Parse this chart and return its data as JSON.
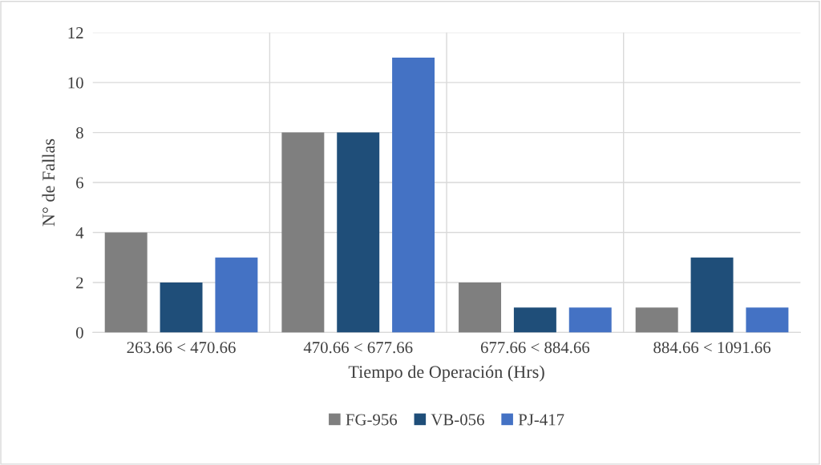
{
  "chart_data": {
    "type": "bar",
    "xlabel": "Tiempo de Operación (Hrs)",
    "ylabel": "N° de Fallas",
    "categories": [
      "263.66 < 470.66",
      "470.66 < 677.66",
      "677.66 < 884.66",
      "884.66 < 1091.66"
    ],
    "series": [
      {
        "name": "FG-956",
        "color": "#7f7f7f",
        "values": [
          4,
          8,
          2,
          1
        ]
      },
      {
        "name": "VB-056",
        "color": "#1f4e79",
        "values": [
          2,
          8,
          1,
          3
        ]
      },
      {
        "name": "PJ-417",
        "color": "#4472c4",
        "values": [
          3,
          11,
          1,
          1
        ]
      }
    ],
    "ylim": [
      0,
      12
    ],
    "yticks": [
      0,
      2,
      4,
      6,
      8,
      10,
      12
    ],
    "grid": true,
    "legend": "bottom"
  }
}
